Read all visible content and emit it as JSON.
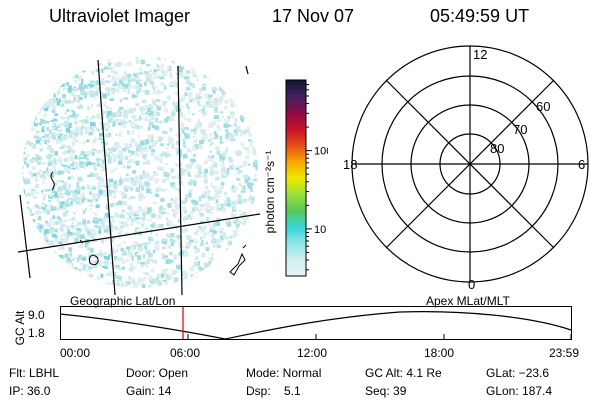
{
  "header": {
    "instrument": "Ultraviolet Imager",
    "date": "17 Nov 07",
    "time": "05:49:59 UT"
  },
  "colorbar": {
    "unit_label": "photon cm⁻²s⁻¹",
    "ticks": [
      {
        "value": 100,
        "label": "100"
      },
      {
        "value": 10,
        "label": "10"
      }
    ],
    "scale": "log",
    "stops": [
      "#e8f2f5",
      "#cfeff0",
      "#8fe6e8",
      "#38d4d8",
      "#5ac85a",
      "#9ae23a",
      "#f0e800",
      "#f7a600",
      "#e84a18",
      "#c8102a",
      "#8c0a4a",
      "#402060",
      "#101830"
    ]
  },
  "polar_grid": {
    "mlt_labels": {
      "top": "12",
      "left": "18",
      "right": "6",
      "bottom": "0"
    },
    "lat_labels": [
      "60",
      "70",
      "80"
    ]
  },
  "orbit_panel": {
    "left_label": "Geographic Lat/Lon",
    "right_label": "Apex MLat/MLT",
    "y_axis_label": "GC Alt",
    "y_ticks": [
      "9.0",
      "1.8"
    ],
    "x_ticks": [
      "00:00",
      "06:00",
      "12:00",
      "18:00",
      "23:59"
    ],
    "current_marker_time": "05:49:59",
    "marker_color": "#e01010"
  },
  "status": {
    "filter": "Flt: LBHL",
    "ip": "IP: 36.0",
    "door": "Door: Open",
    "gain": "Gain: 14",
    "mode": "Mode: Normal",
    "dsp": "Dsp:    5.1",
    "gc_alt": "GC Alt: 4.1 Re",
    "seq": "Seq: 39",
    "glat": "GLat: −23.6",
    "glon": "GLon: 187.4"
  }
}
